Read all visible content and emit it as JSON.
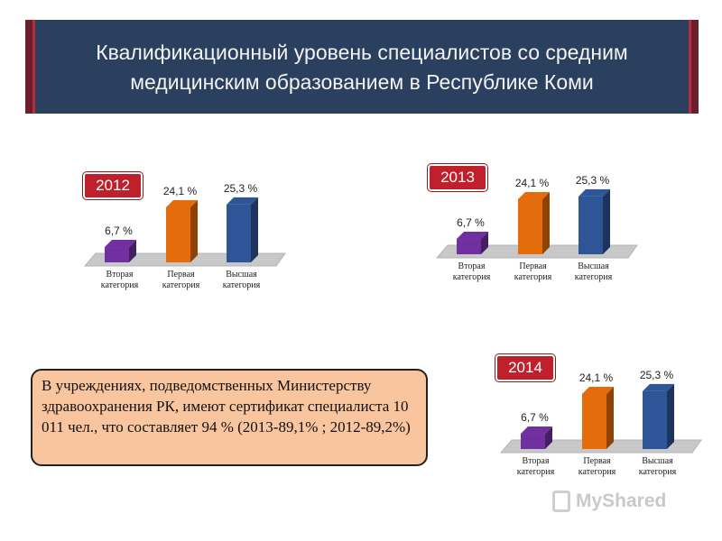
{
  "title": {
    "line1": "Квалификационный уровень специалистов со средним",
    "line2": "медицинским образованием в Республике Коми"
  },
  "colors": {
    "header_bg": "#2b3f5f",
    "badge": "#c0202c",
    "note_bg": "#f8c59e",
    "bar_purple": "#7030a0",
    "bar_orange": "#e46c0a",
    "bar_blue": "#2e5597"
  },
  "note": {
    "text": "В учреждениях, подведомственных Министерству здравоохранения РК, имеют сертификат специалиста 10 011 чел., что составляет   94  % (2013-89,1% ; 2012-89,2%)"
  },
  "watermark": {
    "text": "MyShared"
  },
  "chart_data": [
    {
      "type": "bar",
      "badge": "2012",
      "categories": [
        "Вторая категория",
        "Первая категория",
        "Высшая категория"
      ],
      "category_lines": [
        [
          "Вторая",
          "категория"
        ],
        [
          "Первая",
          "категория"
        ],
        [
          "Высшая",
          "категория"
        ]
      ],
      "values": [
        6.7,
        24.1,
        25.3
      ],
      "data_labels": [
        "6,7 %",
        "24,1 %",
        "25,3 %"
      ],
      "ylim": [
        0,
        30
      ]
    },
    {
      "type": "bar",
      "badge": "2013",
      "categories": [
        "Вторая категория",
        "Первая категория",
        "Высшая категория"
      ],
      "category_lines": [
        [
          "Вторая",
          "категория"
        ],
        [
          "Первая",
          "категория"
        ],
        [
          "Высшая",
          "категория"
        ]
      ],
      "values": [
        6.7,
        24.1,
        25.3
      ],
      "data_labels": [
        "6,7 %",
        "24,1 %",
        "25,3 %"
      ],
      "ylim": [
        0,
        30
      ]
    },
    {
      "type": "bar",
      "badge": "2014",
      "categories": [
        "Вторая категория",
        "Первая категория",
        "Высшая категория"
      ],
      "category_lines": [
        [
          "Вторая",
          "категория"
        ],
        [
          "Первая",
          "категория"
        ],
        [
          "Высшая",
          "категория"
        ]
      ],
      "values": [
        6.7,
        24.1,
        25.3
      ],
      "data_labels": [
        "6,7 %",
        "24,1 %",
        "25,3 %"
      ],
      "ylim": [
        0,
        30
      ]
    }
  ]
}
